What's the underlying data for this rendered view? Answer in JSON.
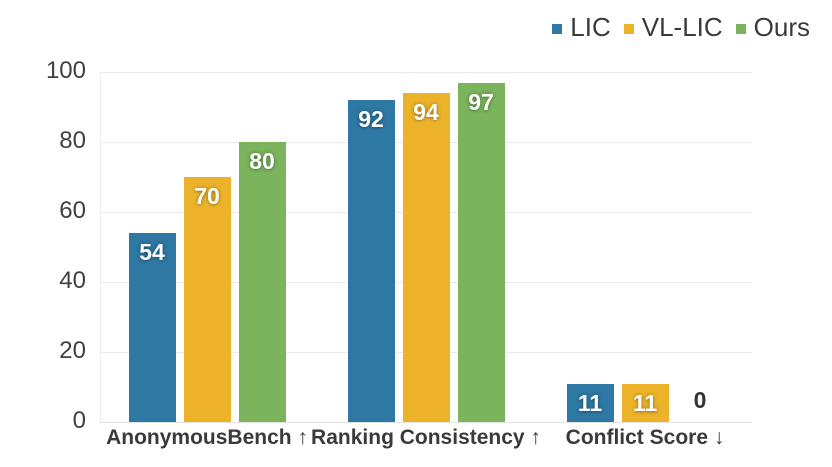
{
  "legend": {
    "items": [
      {
        "label": "LIC",
        "color": "#2E78A4"
      },
      {
        "label": "VL-LIC",
        "color": "#ECB32A"
      },
      {
        "label": "Ours",
        "color": "#7BB45D"
      }
    ]
  },
  "chart_data": {
    "type": "bar",
    "title": "",
    "categories": [
      "AnonymousBench ↑",
      "Ranking Consistency ↑",
      "Conflict Score ↓"
    ],
    "series": [
      {
        "name": "LIC",
        "color": "#2E78A4",
        "values": [
          54,
          92,
          11
        ]
      },
      {
        "name": "VL-LIC",
        "color": "#ECB32A",
        "values": [
          70,
          94,
          11
        ]
      },
      {
        "name": "Ours",
        "color": "#7BB45D",
        "values": [
          80,
          97,
          0
        ]
      }
    ],
    "xlabel": "",
    "ylabel": "",
    "ylim": [
      0,
      100
    ],
    "yticks": [
      0,
      20,
      40,
      60,
      80,
      100
    ],
    "grid": true,
    "legend_position": "top-right",
    "value_labels": "inside-top-white; zero shown as dark text above axis"
  },
  "colors": {
    "background": "#ffffff",
    "gridline": "#eaeaea",
    "tick_text": "#404040",
    "category_text": "#3a3a3a",
    "legend_text": "#3a3a3a",
    "value_text": "#ffffff",
    "zero_value_text": "#333333"
  }
}
